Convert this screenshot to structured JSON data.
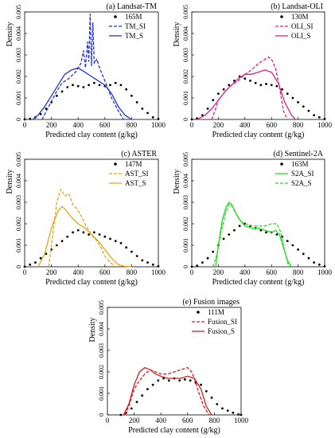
{
  "figure": {
    "shared_xlabel": "Predicted clay content (g/kg)",
    "shared_ylabel": "Density"
  },
  "chart_data": [
    {
      "type": "line",
      "title": "(a) Landsat-TM",
      "xlabel": "Predicted clay content (g/kg)",
      "ylabel": "Density",
      "xlim": [
        0,
        1000
      ],
      "ylim": [
        0,
        0.005
      ],
      "xticks": [
        "0",
        "200",
        "400",
        "600",
        "800",
        "1000"
      ],
      "yticks": [
        "0",
        "0.001",
        "0.002",
        "0.003",
        "0.004",
        "0.005"
      ],
      "legend": "top-right",
      "series": [
        {
          "name": "165M",
          "style": "points",
          "color": "#000000",
          "x": [
            0,
            40,
            80,
            120,
            160,
            200,
            240,
            280,
            320,
            360,
            400,
            440,
            480,
            520,
            560,
            600,
            640,
            680,
            720,
            760,
            800,
            840,
            880,
            920,
            960,
            1000
          ],
          "y": [
            0,
            3e-05,
            0.0001,
            0.00025,
            0.0005,
            0.0008,
            0.0011,
            0.0013,
            0.0015,
            0.0016,
            0.00155,
            0.0015,
            0.0016,
            0.0017,
            0.0016,
            0.00155,
            0.0016,
            0.0017,
            0.0016,
            0.0014,
            0.0011,
            0.0008,
            0.0005,
            0.0003,
            0.0001,
            2e-05
          ]
        },
        {
          "name": "TM_SI",
          "style": "dashed",
          "color": "#2233cc",
          "x": [
            130,
            180,
            230,
            280,
            330,
            380,
            420,
            440,
            455,
            470,
            480,
            490,
            500,
            510,
            520,
            540,
            560,
            600,
            650,
            700,
            740
          ],
          "y": [
            0,
            0.0006,
            0.0012,
            0.0017,
            0.0019,
            0.0022,
            0.0026,
            0.0032,
            0.0024,
            0.0036,
            0.0027,
            0.0049,
            0.0025,
            0.0045,
            0.0026,
            0.0028,
            0.0024,
            0.0018,
            0.001,
            0.0004,
            0
          ]
        },
        {
          "name": "TM_S",
          "style": "solid",
          "color": "#2233cc",
          "x": [
            60,
            100,
            150,
            200,
            250,
            300,
            350,
            400,
            450,
            500,
            550,
            600,
            650,
            700,
            750,
            800
          ],
          "y": [
            0,
            0.0002,
            0.0006,
            0.0011,
            0.0016,
            0.0021,
            0.0023,
            0.0024,
            0.0022,
            0.002,
            0.0018,
            0.0016,
            0.0012,
            0.0006,
            0.0002,
            0
          ]
        }
      ]
    },
    {
      "type": "line",
      "title": "(b) Landsat-OLI",
      "xlabel": "Predicted clay content (g/kg)",
      "ylabel": "Density",
      "xlim": [
        0,
        1000
      ],
      "ylim": [
        0,
        0.005
      ],
      "xticks": [
        "0",
        "200",
        "400",
        "600",
        "800",
        "1000"
      ],
      "yticks": [
        "0",
        "0.001",
        "0.002",
        "0.003",
        "0.004",
        "0.005"
      ],
      "legend": "top-right",
      "series": [
        {
          "name": "130M",
          "style": "points",
          "color": "#000000",
          "x": [
            0,
            40,
            80,
            120,
            160,
            200,
            240,
            280,
            320,
            360,
            400,
            440,
            480,
            520,
            560,
            600,
            640,
            680,
            720,
            760,
            800,
            840,
            880,
            920,
            960,
            1000
          ],
          "y": [
            0,
            5e-05,
            0.0002,
            0.0005,
            0.0009,
            0.0012,
            0.0014,
            0.0016,
            0.0018,
            0.002,
            0.0019,
            0.0018,
            0.0017,
            0.0016,
            0.00165,
            0.0016,
            0.00155,
            0.0014,
            0.0012,
            0.001,
            0.0008,
            0.0006,
            0.0004,
            0.0002,
            0.0001,
            2e-05
          ]
        },
        {
          "name": "OLI_SI",
          "style": "dashed",
          "color": "#e0208a",
          "x": [
            150,
            180,
            200,
            250,
            300,
            350,
            400,
            450,
            500,
            550,
            580,
            600,
            630,
            660,
            690,
            720
          ],
          "y": [
            0,
            0.0005,
            0.0009,
            0.0013,
            0.0016,
            0.0018,
            0.0021,
            0.0023,
            0.0026,
            0.0028,
            0.0029,
            0.0028,
            0.0024,
            0.0015,
            0.0004,
            0
          ]
        },
        {
          "name": "OLI_S",
          "style": "solid",
          "color": "#e0208a",
          "x": [
            40,
            100,
            150,
            200,
            250,
            300,
            350,
            400,
            450,
            500,
            550,
            600,
            650,
            700,
            750,
            780
          ],
          "y": [
            0,
            0.0002,
            0.0005,
            0.0009,
            0.0013,
            0.0016,
            0.0019,
            0.0021,
            0.0021,
            0.0022,
            0.0023,
            0.0022,
            0.0017,
            0.0008,
            0.0002,
            0
          ]
        }
      ]
    },
    {
      "type": "line",
      "title": "(c) ASTER",
      "xlabel": "Predicted clay content (g/kg)",
      "ylabel": "Density",
      "xlim": [
        0,
        1000
      ],
      "ylim": [
        0,
        0.005
      ],
      "xticks": [
        "0",
        "200",
        "400",
        "600",
        "800",
        "1000"
      ],
      "yticks": [
        "0",
        "0.001",
        "0.002",
        "0.003",
        "0.004",
        "0.005"
      ],
      "legend": "top-right",
      "series": [
        {
          "name": "147M",
          "style": "points",
          "color": "#000000",
          "x": [
            0,
            40,
            80,
            120,
            160,
            200,
            240,
            280,
            320,
            360,
            400,
            440,
            480,
            520,
            560,
            600,
            640,
            680,
            720,
            760,
            800,
            840,
            880,
            920,
            960,
            1000
          ],
          "y": [
            0,
            0.0001,
            0.0002,
            0.0004,
            0.0006,
            0.0008,
            0.001,
            0.0012,
            0.0014,
            0.0016,
            0.0017,
            0.0016,
            0.0015,
            0.0016,
            0.0015,
            0.0014,
            0.0013,
            0.0012,
            0.0011,
            0.0009,
            0.0007,
            0.0005,
            0.0003,
            0.0002,
            0.0001,
            2e-05
          ]
        },
        {
          "name": "AST_SI",
          "style": "dashed",
          "color": "#e8a317",
          "x": [
            180,
            210,
            240,
            270,
            300,
            330,
            360,
            390,
            420,
            450,
            480,
            510,
            540,
            570,
            600,
            640,
            680
          ],
          "y": [
            0,
            0.0015,
            0.003,
            0.0036,
            0.0033,
            0.0034,
            0.0029,
            0.0027,
            0.0024,
            0.002,
            0.0017,
            0.0014,
            0.0012,
            0.0009,
            0.0005,
            0.0002,
            0
          ]
        },
        {
          "name": "AST_S",
          "style": "solid",
          "color": "#e8a317",
          "x": [
            100,
            150,
            200,
            250,
            280,
            300,
            350,
            400,
            450,
            500,
            550,
            600,
            650,
            700,
            750,
            800
          ],
          "y": [
            0,
            0.0006,
            0.0018,
            0.0026,
            0.0028,
            0.0027,
            0.0023,
            0.002,
            0.0018,
            0.0015,
            0.0012,
            0.0008,
            0.0004,
            0.0001,
            2e-05,
            0
          ]
        }
      ]
    },
    {
      "type": "line",
      "title": "(d) Sentinel-2A",
      "xlabel": "Predicted clay content (g/kg)",
      "ylabel": "Density",
      "xlim": [
        0,
        1000
      ],
      "ylim": [
        0,
        0.005
      ],
      "xticks": [
        "0",
        "200",
        "400",
        "600",
        "800",
        "1000"
      ],
      "yticks": [
        "0",
        "0.001",
        "0.002",
        "0.003",
        "0.004",
        "0.005"
      ],
      "legend": "top-right",
      "series": [
        {
          "name": "163M",
          "style": "points",
          "color": "#000000",
          "x": [
            0,
            40,
            80,
            120,
            160,
            200,
            240,
            280,
            320,
            360,
            400,
            440,
            480,
            520,
            560,
            600,
            640,
            680,
            720,
            760,
            800,
            840,
            880,
            920,
            960,
            1000
          ],
          "y": [
            0,
            5e-05,
            0.0002,
            0.0004,
            0.0007,
            0.001,
            0.0013,
            0.0015,
            0.0017,
            0.0019,
            0.002,
            0.0019,
            0.0018,
            0.0017,
            0.0016,
            0.0016,
            0.0015,
            0.0014,
            0.0012,
            0.001,
            0.0008,
            0.0006,
            0.0004,
            0.0002,
            0.0001,
            2e-05
          ]
        },
        {
          "name": "S2A_SI",
          "style": "solid",
          "color": "#22dd22",
          "x": [
            180,
            200,
            230,
            260,
            280,
            300,
            330,
            360,
            400,
            450,
            500,
            550,
            600,
            630,
            660,
            690,
            720,
            750
          ],
          "y": [
            0,
            0.001,
            0.0022,
            0.0028,
            0.003,
            0.0029,
            0.0025,
            0.0022,
            0.0019,
            0.0018,
            0.0018,
            0.0017,
            0.0016,
            0.0017,
            0.0015,
            0.0009,
            0.0003,
            0
          ]
        },
        {
          "name": "S2A_S",
          "style": "dashed",
          "color": "#22dd22",
          "x": [
            160,
            190,
            220,
            250,
            280,
            310,
            340,
            370,
            400,
            450,
            500,
            550,
            600,
            640,
            670,
            700,
            730
          ],
          "y": [
            0,
            0.0006,
            0.0016,
            0.0024,
            0.0029,
            0.0028,
            0.0024,
            0.0021,
            0.002,
            0.0019,
            0.0019,
            0.0019,
            0.002,
            0.002,
            0.0016,
            0.0007,
            0
          ]
        }
      ]
    },
    {
      "type": "line",
      "title": "(e) Fusion images",
      "xlabel": "Predicted clay content (g/kg)",
      "ylabel": "Density",
      "xlim": [
        0,
        1000
      ],
      "ylim": [
        0,
        0.005
      ],
      "xticks": [
        "0",
        "200",
        "400",
        "600",
        "800",
        "1000"
      ],
      "yticks": [
        "0",
        "0.001",
        "0.002",
        "0.003",
        "0.004",
        "0.005"
      ],
      "legend": "top-right",
      "series": [
        {
          "name": "111M",
          "style": "points",
          "color": "#000000",
          "x": [
            100,
            140,
            180,
            220,
            260,
            300,
            340,
            380,
            420,
            460,
            500,
            540,
            580,
            620,
            660,
            700,
            740,
            780,
            820,
            860,
            900,
            940,
            980,
            1000
          ],
          "y": [
            0,
            0.0001,
            0.0003,
            0.0006,
            0.0009,
            0.0012,
            0.0014,
            0.0016,
            0.0017,
            0.0016,
            0.0017,
            0.0016,
            0.00165,
            0.0016,
            0.0015,
            0.0014,
            0.0011,
            0.0008,
            0.0005,
            0.0003,
            0.0002,
            0.0001,
            2e-05,
            0
          ]
        },
        {
          "name": "Fusion_SI",
          "style": "dashed",
          "color": "#cc2222",
          "x": [
            130,
            160,
            200,
            240,
            280,
            320,
            360,
            400,
            450,
            500,
            550,
            600,
            630,
            650,
            680,
            720,
            760
          ],
          "y": [
            0,
            0.0004,
            0.0012,
            0.0016,
            0.0019,
            0.0021,
            0.002,
            0.0019,
            0.0019,
            0.002,
            0.0021,
            0.0022,
            0.002,
            0.0017,
            0.0011,
            0.0004,
            0
          ]
        },
        {
          "name": "Fusion_S",
          "style": "solid",
          "color": "#cc2222",
          "x": [
            120,
            160,
            200,
            240,
            280,
            320,
            360,
            400,
            450,
            500,
            550,
            600,
            650,
            700,
            740,
            780
          ],
          "y": [
            0,
            0.0005,
            0.0014,
            0.002,
            0.0022,
            0.0021,
            0.0019,
            0.0018,
            0.0017,
            0.0017,
            0.0017,
            0.0018,
            0.0017,
            0.0012,
            0.0004,
            0
          ]
        }
      ]
    }
  ]
}
